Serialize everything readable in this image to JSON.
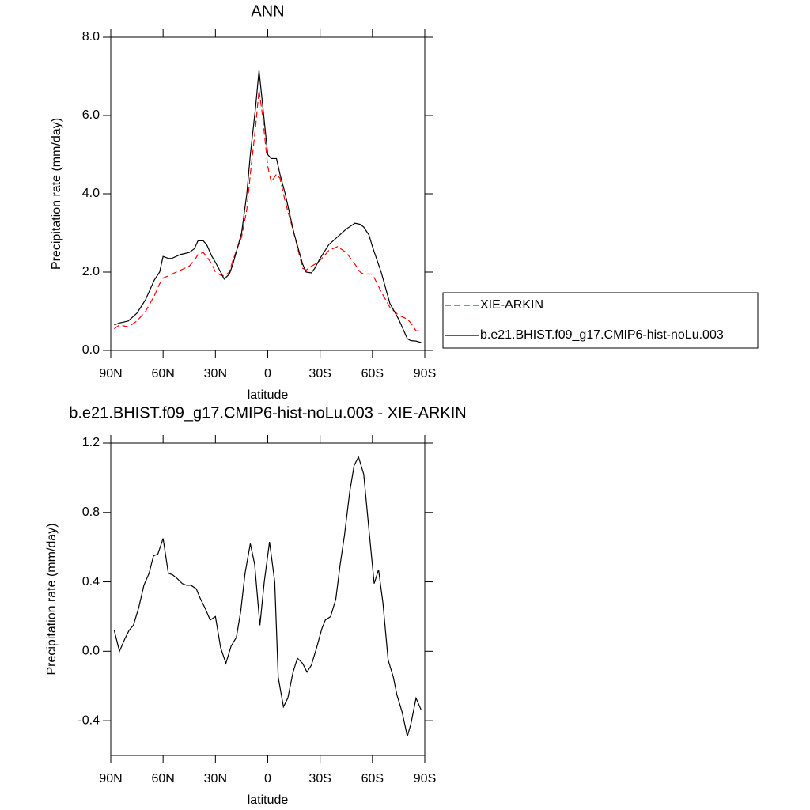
{
  "chart_data": [
    {
      "type": "line",
      "title": "ANN",
      "xlabel": "latitude",
      "ylabel": "Precipitation rate (mm/day)",
      "x": [
        88,
        85,
        80,
        75,
        70,
        65,
        62,
        60,
        57,
        55,
        50,
        45,
        42,
        40,
        37,
        35,
        32,
        30,
        27,
        25,
        22,
        20,
        15,
        12,
        10,
        7,
        5,
        3,
        0,
        -2,
        -5,
        -7,
        -10,
        -15,
        -20,
        -22,
        -25,
        -27,
        -30,
        -35,
        -40,
        -45,
        -50,
        -53,
        -55,
        -58,
        -60,
        -65,
        -70,
        -75,
        -80,
        -82,
        -85,
        -88
      ],
      "series": [
        {
          "name": "XIE-ARKIN",
          "color": "#ff0000",
          "style": "dashed",
          "values": [
            0.55,
            0.65,
            0.6,
            0.75,
            1.0,
            1.4,
            1.7,
            1.85,
            1.9,
            1.95,
            2.05,
            2.15,
            2.3,
            2.45,
            2.5,
            2.4,
            2.2,
            2.0,
            1.92,
            1.9,
            2.0,
            2.3,
            2.9,
            3.6,
            4.5,
            5.7,
            6.65,
            6.0,
            4.7,
            4.3,
            4.5,
            4.4,
            3.8,
            3.0,
            2.1,
            2.05,
            2.15,
            2.2,
            2.3,
            2.55,
            2.65,
            2.5,
            2.2,
            2.0,
            1.95,
            1.95,
            1.95,
            1.5,
            1.1,
            0.9,
            0.8,
            0.7,
            0.5,
            0.5
          ]
        },
        {
          "name": "b.e21.BHIST.f09_g17.CMIP6-hist-noLu.003",
          "color": "#000000",
          "style": "solid",
          "values": [
            0.65,
            0.7,
            0.75,
            0.95,
            1.3,
            1.8,
            2.0,
            2.4,
            2.35,
            2.35,
            2.45,
            2.5,
            2.6,
            2.8,
            2.8,
            2.7,
            2.4,
            2.25,
            2.0,
            1.82,
            1.95,
            2.2,
            3.0,
            4.0,
            5.0,
            6.2,
            7.15,
            6.3,
            5.0,
            4.9,
            4.9,
            4.5,
            4.0,
            3.0,
            2.2,
            2.0,
            1.98,
            2.1,
            2.35,
            2.7,
            2.9,
            3.1,
            3.25,
            3.22,
            3.15,
            2.95,
            2.65,
            2.0,
            1.2,
            0.8,
            0.3,
            0.25,
            0.24,
            0.2
          ]
        }
      ],
      "xlim": [
        90,
        -90
      ],
      "xticks": [
        {
          "value": 90,
          "label": "90N"
        },
        {
          "value": 60,
          "label": "60N"
        },
        {
          "value": 30,
          "label": "30N"
        },
        0,
        {
          "value": -30,
          "label": "30S"
        },
        {
          "value": -60,
          "label": "60S"
        },
        {
          "value": -90,
          "label": "90S"
        }
      ],
      "ylim": [
        0,
        8
      ],
      "yticks": [
        {
          "value": 0,
          "label": "0.0"
        },
        {
          "value": 2,
          "label": "2.0"
        },
        {
          "value": 4,
          "label": "4.0"
        },
        {
          "value": 6,
          "label": "6.0"
        },
        {
          "value": 8,
          "label": "8.0"
        }
      ],
      "legend": "right"
    },
    {
      "type": "line",
      "title": "b.e21.BHIST.f09_g17.CMIP6-hist-noLu.003 - XIE-ARKIN",
      "xlabel": "latitude",
      "ylabel": "Precipitation rate (mm/day)",
      "x": [
        88,
        85,
        82,
        79.5,
        77,
        74,
        71,
        68,
        65.5,
        63,
        60,
        57,
        54.5,
        52,
        49,
        46.5,
        44,
        41,
        38.5,
        36,
        33,
        30,
        27,
        24,
        21,
        18,
        15.5,
        13,
        10,
        7.5,
        4.5,
        2,
        -1,
        -4,
        -6,
        -9,
        -11.5,
        -14.5,
        -17,
        -20,
        -22.5,
        -25,
        -28,
        -31,
        -33,
        -36,
        -39,
        -41.5,
        -44,
        -47,
        -49.5,
        -52,
        -55,
        -58,
        -61,
        -63.5,
        -66,
        -69,
        -72,
        -74,
        -77,
        -80,
        -82,
        -85,
        -88
      ],
      "values": [
        0.12,
        0.0,
        0.07,
        0.12,
        0.15,
        0.25,
        0.38,
        0.45,
        0.55,
        0.56,
        0.65,
        0.45,
        0.44,
        0.42,
        0.39,
        0.38,
        0.38,
        0.36,
        0.3,
        0.25,
        0.18,
        0.2,
        0.02,
        -0.07,
        0.03,
        0.08,
        0.23,
        0.45,
        0.62,
        0.5,
        0.15,
        0.4,
        0.63,
        0.4,
        -0.15,
        -0.32,
        -0.27,
        -0.12,
        -0.04,
        -0.07,
        -0.12,
        -0.08,
        0.02,
        0.13,
        0.18,
        0.2,
        0.3,
        0.5,
        0.67,
        0.92,
        1.07,
        1.12,
        1.02,
        0.7,
        0.39,
        0.47,
        0.28,
        -0.05,
        -0.15,
        -0.25,
        -0.35,
        -0.49,
        -0.42,
        -0.27,
        -0.34
      ],
      "color": "#000000",
      "xlim": [
        90,
        -90
      ],
      "xticks": [
        {
          "value": 90,
          "label": "90N"
        },
        {
          "value": 60,
          "label": "60N"
        },
        {
          "value": 30,
          "label": "30N"
        },
        0,
        {
          "value": -30,
          "label": "30S"
        },
        {
          "value": -60,
          "label": "60S"
        },
        {
          "value": -90,
          "label": "90S"
        }
      ],
      "ylim": [
        -0.6,
        1.2
      ],
      "yticks": [
        -0.4,
        {
          "value": 0,
          "label": "0.0"
        },
        0.4,
        0.8,
        1.2
      ]
    }
  ]
}
